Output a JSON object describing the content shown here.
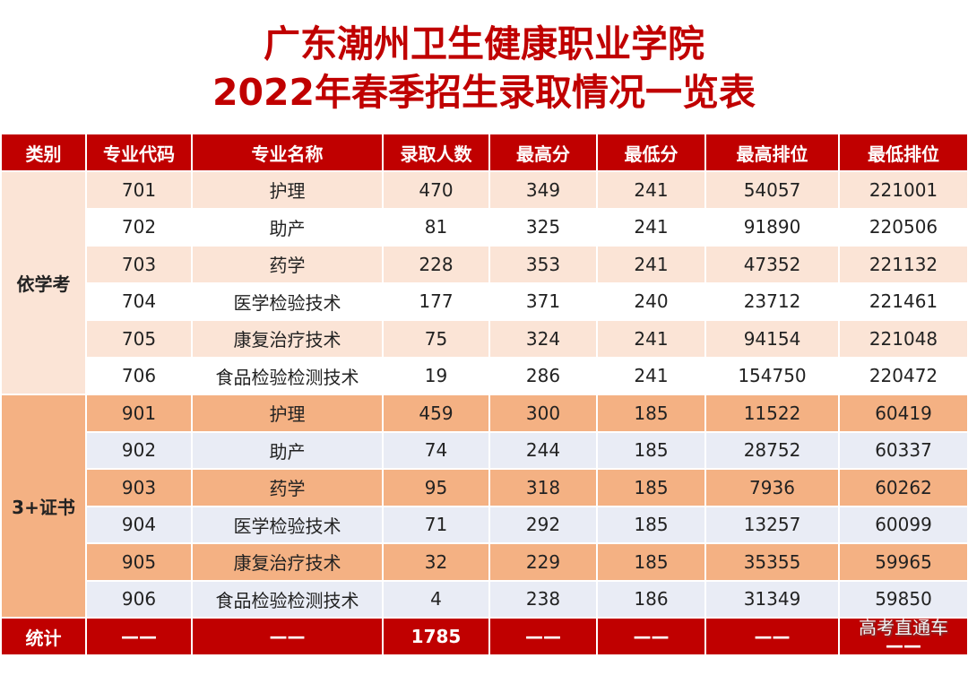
{
  "title": {
    "line1": "广东潮州卫生健康职业学院",
    "line2": "2022年春季招生录取情况一览表"
  },
  "headers": [
    "类别",
    "专业代码",
    "专业名称",
    "录取人数",
    "最高分",
    "最低分",
    "最高排位",
    "最低排位"
  ],
  "groups": [
    {
      "category": "依学考",
      "rows": [
        [
          "701",
          "护理",
          "470",
          "349",
          "241",
          "54057",
          "221001"
        ],
        [
          "702",
          "助产",
          "81",
          "325",
          "241",
          "91890",
          "220506"
        ],
        [
          "703",
          "药学",
          "228",
          "353",
          "241",
          "47352",
          "221132"
        ],
        [
          "704",
          "医学检验技术",
          "177",
          "371",
          "240",
          "23712",
          "221461"
        ],
        [
          "705",
          "康复治疗技术",
          "75",
          "324",
          "241",
          "94154",
          "221048"
        ],
        [
          "706",
          "食品检验检测技术",
          "19",
          "286",
          "241",
          "154750",
          "220472"
        ]
      ]
    },
    {
      "category": "3+证书",
      "rows": [
        [
          "901",
          "护理",
          "459",
          "300",
          "185",
          "11522",
          "60419"
        ],
        [
          "902",
          "助产",
          "74",
          "244",
          "185",
          "28752",
          "60337"
        ],
        [
          "903",
          "药学",
          "95",
          "318",
          "185",
          "7936",
          "60262"
        ],
        [
          "904",
          "医学检验技术",
          "71",
          "292",
          "185",
          "13257",
          "60099"
        ],
        [
          "905",
          "康复治疗技术",
          "32",
          "229",
          "185",
          "35355",
          "59965"
        ],
        [
          "906",
          "食品检验检测技术",
          "4",
          "238",
          "186",
          "31349",
          "59850"
        ]
      ]
    }
  ],
  "footer": [
    "统计",
    "——",
    "——",
    "1785",
    "——",
    "——",
    "——",
    "——"
  ],
  "watermark": "高考直通车",
  "colors": {
    "header": "#c00000",
    "group1_a": "#fbe4d6",
    "group2_a": "#f4b183",
    "group2_b": "#e9ecf5"
  }
}
